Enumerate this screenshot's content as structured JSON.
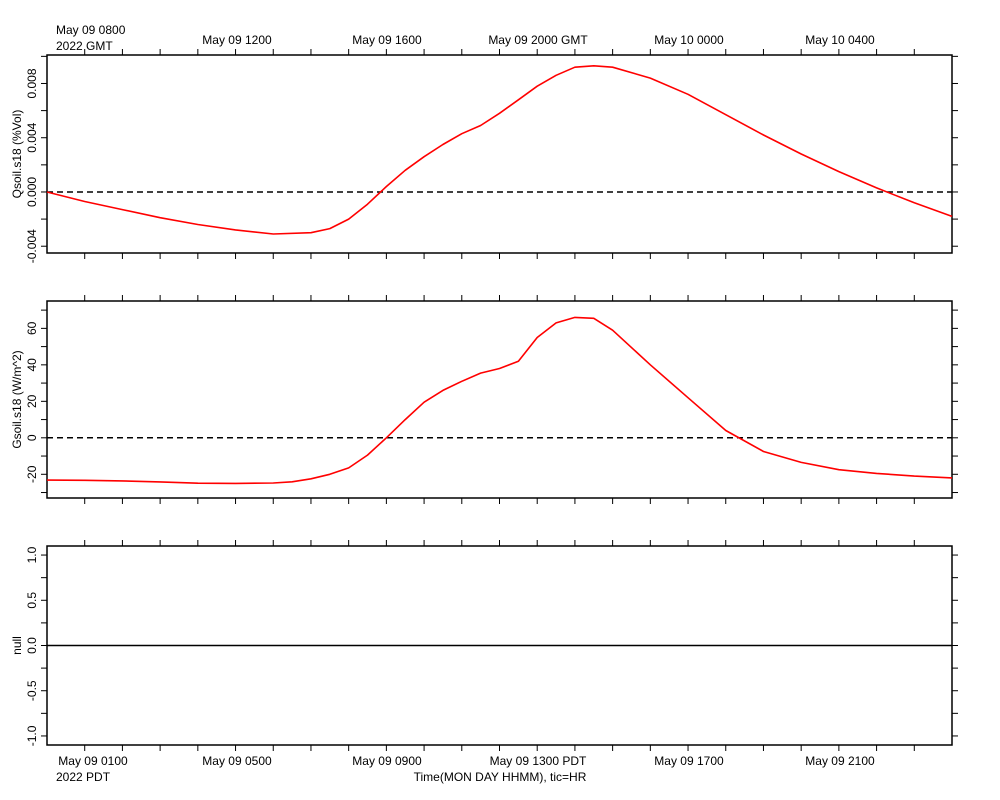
{
  "top_axis": {
    "first_label": "May 09 0800",
    "first_sublabel": "2022 GMT",
    "labels": [
      "May 09 1200",
      "May 09 1600",
      "May 09 2000 GMT",
      "May 10 0000",
      "May 10 0400"
    ]
  },
  "bottom_axis": {
    "first_label": "May 09 0100",
    "first_sublabel": "2022 PDT",
    "labels": [
      "May 09 0500",
      "May 09 0900",
      "May 09 1300 PDT",
      "May 09 1700",
      "May 09 2100"
    ],
    "title": "Time(MON DAY HHMM), tic=HR"
  },
  "colors": {
    "series": "#ff0000",
    "axis": "#000000",
    "zero_line": "#000000"
  },
  "chart_data": [
    {
      "type": "line",
      "ylabel": "Qsoil.s18 (%Vol)",
      "ylim": [
        -0.0045,
        0.0101
      ],
      "yticks": [
        -0.004,
        0.0,
        0.004,
        0.008
      ],
      "ytick_labels": [
        "-0.004",
        "0.000",
        "0.004",
        "0.008"
      ],
      "xlim_hours": [
        0,
        24
      ],
      "x_hours_pdt": [
        0,
        1,
        2,
        3,
        4,
        5,
        6,
        7,
        7.5,
        8,
        8.5,
        9,
        9.5,
        10,
        10.5,
        11,
        11.5,
        12,
        12.5,
        13,
        13.5,
        14,
        14.5,
        15,
        16,
        17,
        18,
        19,
        20,
        21,
        22,
        23,
        24
      ],
      "series": [
        {
          "values": [
            0.0,
            -0.0007,
            -0.0013,
            -0.0019,
            -0.0024,
            -0.0028,
            -0.0031,
            -0.003,
            -0.0027,
            -0.002,
            -0.0009,
            0.0004,
            0.0016,
            0.0026,
            0.0035,
            0.0043,
            0.0049,
            0.0058,
            0.0068,
            0.0078,
            0.0086,
            0.0092,
            0.0093,
            0.0092,
            0.0084,
            0.0072,
            0.0057,
            0.0042,
            0.0028,
            0.0015,
            0.0003,
            -0.0008,
            -0.0018
          ]
        }
      ],
      "zero_line": "dashed"
    },
    {
      "type": "line",
      "ylabel": "Gsoil.s18 (W/m^2)",
      "ylim": [
        -33,
        75
      ],
      "yticks": [
        -20,
        0,
        20,
        40,
        60
      ],
      "ytick_labels": [
        "-20",
        "0",
        "20",
        "40",
        "60"
      ],
      "xlim_hours": [
        0,
        24
      ],
      "x_hours_pdt": [
        0,
        1,
        2,
        3,
        4,
        5,
        6,
        6.5,
        7,
        7.5,
        8,
        8.5,
        9,
        9.5,
        10,
        10.5,
        11,
        11.5,
        12,
        12.5,
        13,
        13.5,
        14,
        14.5,
        15,
        16,
        17,
        18,
        19,
        20,
        21,
        22,
        23,
        24
      ],
      "series": [
        {
          "values": [
            -23.2,
            -23.3,
            -23.6,
            -24.2,
            -24.9,
            -25.0,
            -24.8,
            -24.1,
            -22.5,
            -20.0,
            -16.5,
            -9.5,
            0.0,
            10.0,
            19.5,
            26.0,
            31.0,
            35.5,
            38.0,
            42.0,
            55.0,
            63.0,
            66.0,
            65.5,
            59.0,
            40.0,
            22.0,
            4.0,
            -7.5,
            -13.5,
            -17.5,
            -19.5,
            -21.0,
            -22.0
          ]
        }
      ],
      "zero_line": "dashed"
    },
    {
      "type": "line",
      "ylabel": "null",
      "ylim": [
        -1.1,
        1.1
      ],
      "yticks": [
        -1.0,
        -0.5,
        0.0,
        0.5,
        1.0
      ],
      "ytick_labels": [
        "-1.0",
        "-0.5",
        "0.0",
        "0.5",
        "1.0"
      ],
      "xlim_hours": [
        0,
        24
      ],
      "x_hours_pdt": [
        0,
        24
      ],
      "series": [
        {
          "values": [
            0.0,
            0.0
          ]
        }
      ],
      "zero_line": "solid"
    }
  ]
}
